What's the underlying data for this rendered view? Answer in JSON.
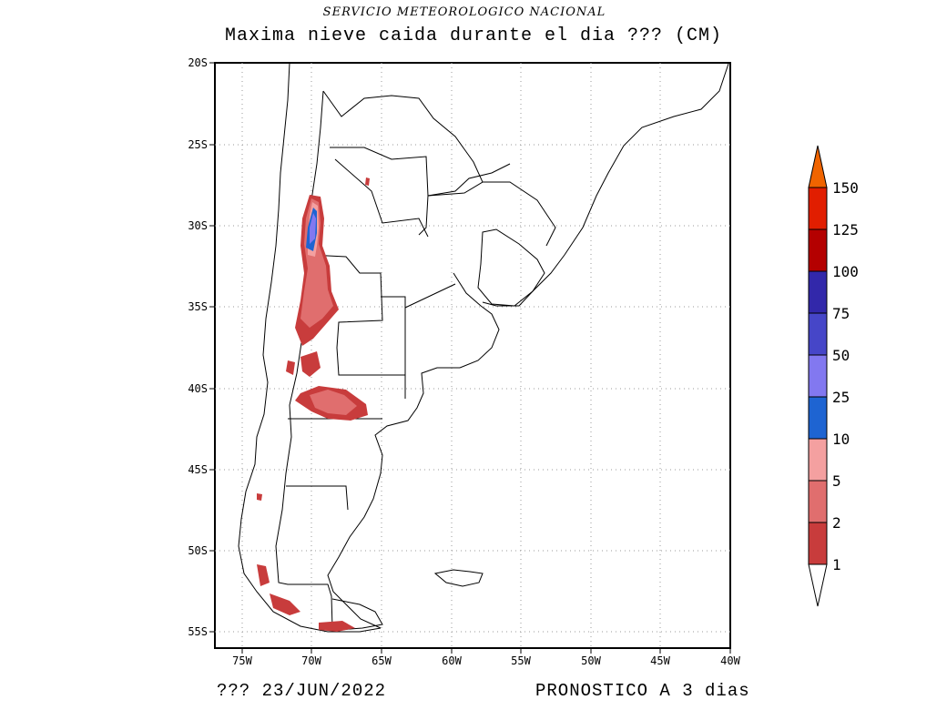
{
  "header": {
    "agency": "SERVICIO METEOROLOGICO NACIONAL",
    "title": "Maxima nieve caida durante el dia ??? (CM)"
  },
  "footer": {
    "run_label": "???  23/JUN/2022",
    "forecast_label": "PRONOSTICO A 3 dias"
  },
  "map": {
    "lat_labels": [
      "20S",
      "25S",
      "30S",
      "35S",
      "40S",
      "45S",
      "50S",
      "55S"
    ],
    "lon_labels": [
      "75W",
      "70W",
      "65W",
      "60W",
      "55W",
      "50W",
      "45W",
      "40W"
    ],
    "grid": true,
    "land_color": "#ffffff",
    "border_color": "#000000"
  },
  "legend": {
    "labels": [
      "1",
      "2",
      "5",
      "10",
      "25",
      "50",
      "75",
      "100",
      "125",
      "150"
    ],
    "colors": [
      "#ffffff",
      "#c83c3c",
      "#e06e6e",
      "#f4a0a0",
      "#1e64d2",
      "#8278f0",
      "#4646c8",
      "#3228aa",
      "#b40000",
      "#e11e00",
      "#f06400"
    ],
    "placement": "right"
  }
}
